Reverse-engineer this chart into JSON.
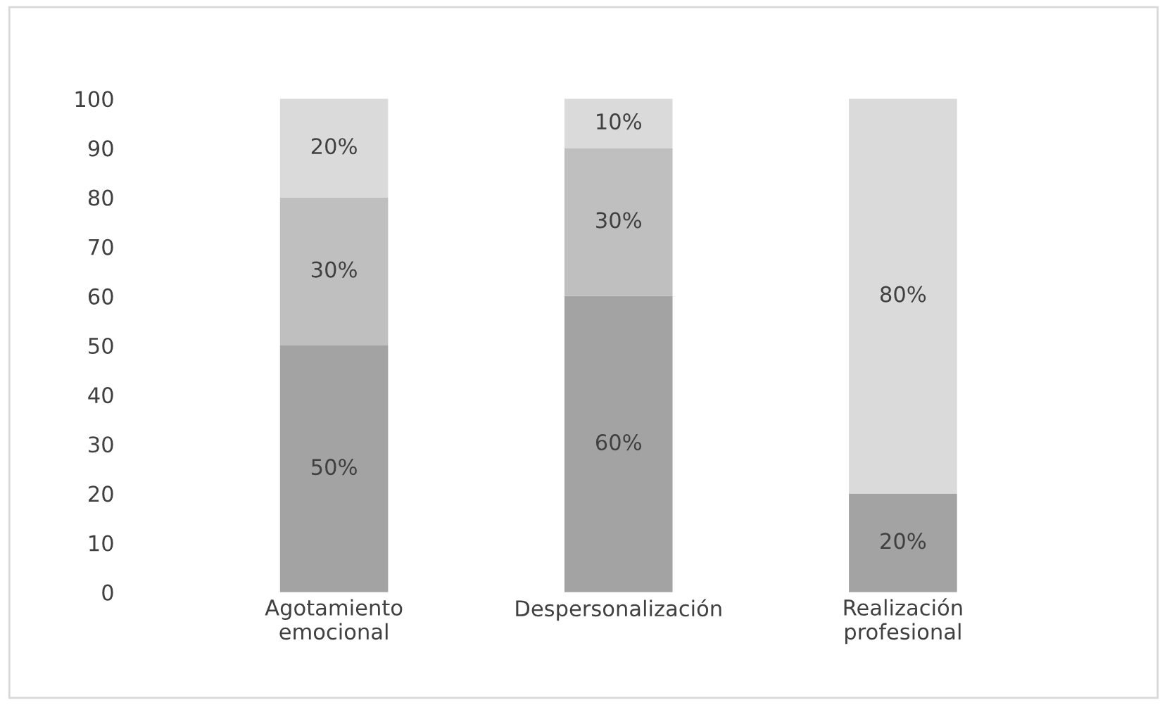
{
  "chart_data": {
    "type": "bar",
    "stacked": true,
    "categories": [
      "Agotamiento\nemocional",
      "Despersonalización",
      "Realización\nprofesional"
    ],
    "series": [
      {
        "color": "#a3a3a3",
        "values": [
          50,
          60,
          20
        ],
        "value_labels": [
          "50%",
          "60%",
          "20%"
        ]
      },
      {
        "color": "#bfbfbf",
        "values": [
          30,
          30,
          null
        ],
        "value_labels": [
          "30%",
          "30%",
          null
        ]
      },
      {
        "color": "#dadada",
        "values": [
          20,
          10,
          80
        ],
        "value_labels": [
          "20%",
          "10%",
          "80%"
        ]
      }
    ],
    "ylim": [
      0,
      100
    ],
    "yticks": [
      0,
      10,
      20,
      30,
      40,
      50,
      60,
      70,
      80,
      90,
      100
    ],
    "grid": false,
    "legend": false
  }
}
